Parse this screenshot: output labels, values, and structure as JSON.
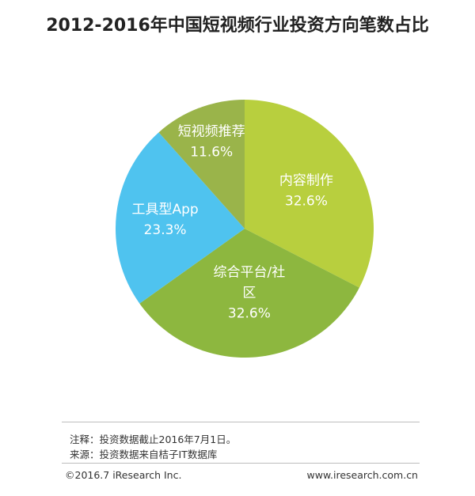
{
  "chart_data": {
    "type": "pie",
    "title": "2012-2016年中国短视频行业投资方向笔数占比",
    "slices": [
      {
        "label_lines": [
          "内容制作"
        ],
        "value_text": "32.6%",
        "value": 32.6,
        "color": "#b8cf3e"
      },
      {
        "label_lines": [
          "综合平台/社",
          "区"
        ],
        "value_text": "32.6%",
        "value": 32.6,
        "color": "#8db73f"
      },
      {
        "label_lines": [
          "工具型App"
        ],
        "value_text": "23.3%",
        "value": 23.3,
        "color": "#4fc3ef"
      },
      {
        "label_lines": [
          "短视频推荐"
        ],
        "value_text": "11.6%",
        "value": 11.6,
        "color": "#9ab44a"
      }
    ]
  },
  "notes": {
    "note1": "注释：投资数据截止2016年7月1日。",
    "note2": "来源：投资数据来自桔子IT数据库"
  },
  "footer": {
    "copyright": "©2016.7 iResearch Inc.",
    "website": "www.iresearch.com.cn"
  }
}
